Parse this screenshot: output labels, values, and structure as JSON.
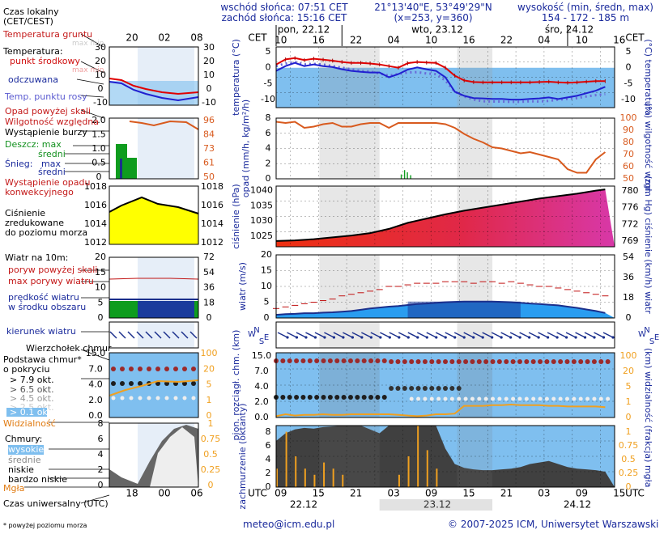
{
  "header": {
    "sunrise": "wschód słońca: 07:51 CET",
    "sunset": "zachód słońca: 15:16 CET",
    "coords": "21°13'40\"E, 53°49'29\"N",
    "grid": "(x=253, y=360)",
    "alt_label": "wysokość (min, średn, max)",
    "alt_values": "154 - 172 - 185 m"
  },
  "legend": {
    "local_time": "Czas lokalny",
    "local_time_sub": "(CET/CEST)",
    "soil_temp": "Temperatura gruntu",
    "soil_max_min": "max min",
    "temp_label": "Temperatura:",
    "temp_mid": "punkt środkowy",
    "temp_max_min": "max min",
    "felt": "odczuwana",
    "dew": "Temp. punktu rosy",
    "precip_above": "Opad powyżej skali",
    "humidity": "Wilgotność względna",
    "storm": "Wystąpienie burzy",
    "rain": "Deszcz: max",
    "rain_avg": "średni",
    "snow": "Śnieg:",
    "snow_max": "max",
    "snow_avg": "średni",
    "conv": "Wystąpienie opadu",
    "conv2": "konwekcyjnego",
    "pressure1": "Ciśnienie",
    "pressure2": "zredukowane",
    "pressure3": "do poziomu morza",
    "wind_title": "Wiatr na 10m:",
    "gust_above": "poryw powyżej skali",
    "gust_max": "max porywy wiatru",
    "wind_speed": "prędkość wiatru",
    "wind_area": "w środku obszaru",
    "wind_dir": "kierunek wiatru",
    "cloud_top": "Wierzchołek chmur",
    "cloud_base": "Podstawa chmur*",
    "cloud_cover": "o pokryciu",
    "okt1": "> 7.9 okt.",
    "okt2": "> 6.5 okt.",
    "okt3": "> 4.5 okt.",
    "okt4": "> 2.5 okt.",
    "okt5": "> 0.1 okt.",
    "visibility": "Widzialność",
    "clouds": "Chmury:",
    "cl_high": "wysokie",
    "cl_mid": "średnie",
    "cl_low": "niskie",
    "cl_vlow": "bardzo niskie",
    "fog": "Mgła",
    "utc": "Czas uniwersalny (UTC)",
    "footnote": "* powyżej poziomu morza"
  },
  "mini_axes": {
    "local_ticks": [
      "20",
      "02",
      "08"
    ],
    "utc_ticks": [
      "18",
      "00",
      "06"
    ],
    "temp_ticks": [
      "30",
      "20",
      "10",
      "0",
      "-10"
    ],
    "precip_ticks": [
      "2.0",
      "1.5",
      "1.0",
      "0.5",
      "0"
    ],
    "hum_ticks": [
      "96",
      "84",
      "73",
      "61",
      "50"
    ],
    "pres_ticks_l": [
      "1018",
      "1016",
      "1014",
      "1012"
    ],
    "pres_ticks_r": [
      "1018",
      "1016",
      "1014",
      "1012"
    ],
    "wind_ticks_l": [
      "20",
      "15",
      "10",
      "5",
      "0"
    ],
    "wind_ticks_r": [
      "72",
      "54",
      "36",
      "18",
      "0"
    ],
    "cb_ticks": [
      "15.0",
      "7.0",
      "4.0",
      "2.0",
      "0.0"
    ],
    "vis_ticks": [
      "100",
      "20",
      "5",
      "1",
      "0"
    ],
    "cl_ticks": [
      "8",
      "6",
      "4",
      "2",
      "0"
    ],
    "fog_ticks": [
      "1",
      "0.75",
      "0.5",
      "0.25",
      "0"
    ]
  },
  "main_axes": {
    "cet": "CET",
    "utc": "UTC",
    "days_top": [
      "pon, 22.12",
      "wto, 23.12",
      "śro, 24.12"
    ],
    "cet_hours": [
      "10",
      "16",
      "22",
      "04",
      "10",
      "16",
      "22",
      "04",
      "10",
      "16"
    ],
    "utc_hours": [
      "09",
      "15",
      "21",
      "03",
      "09",
      "15",
      "21",
      "03",
      "09",
      "15"
    ],
    "days_bottom": [
      "22.12",
      "23.12",
      "24.12"
    ],
    "temp_left": "temperatura (°C)",
    "temp_right": "(°C) temperatura",
    "temp_ticks": [
      "5",
      "0",
      "-5",
      "-10"
    ],
    "precip_left": "opad (mm/h, kg/m²/h)",
    "precip_right": "(%) wilgotność wzgl.",
    "precip_ticks": [
      "8",
      "6",
      "4",
      "2",
      "0"
    ],
    "hum_ticks": [
      "100",
      "90",
      "80",
      "70",
      "60",
      "50"
    ],
    "pres_left": "ciśnienie (hPa)",
    "pres_right": "(mm Hg) ciśnienie",
    "pres_ticks": [
      "1040",
      "1035",
      "1030",
      "1025"
    ],
    "pres_mm_ticks": [
      "780",
      "776",
      "772",
      "769"
    ],
    "wind_left": "wiatr (m/s)",
    "wind_right": "(km/h) wiatr",
    "wind_ticks": [
      "20",
      "15",
      "10",
      "5",
      "0"
    ],
    "wind_kmh": [
      "54",
      "36",
      "18",
      "0"
    ],
    "cb_left": "pion. rozciągł. chm. (km)",
    "cb_right": "(km) widzialność",
    "cb_ticks": [
      "15.0",
      "7.0",
      "4.0",
      "2.0",
      "0.0"
    ],
    "vis_ticks": [
      "100",
      "20",
      "5",
      "1",
      "0"
    ],
    "cl_left": "zachmurzenie (oktanty)",
    "cl_right": "(frakcja) mgła",
    "cl_ticks": [
      "8",
      "6",
      "4",
      "2",
      "0"
    ],
    "fog_ticks": [
      "1",
      "0.75",
      "0.5",
      "0.25",
      "0"
    ],
    "compass_n": "N",
    "compass_w": "W",
    "compass_s": "S",
    "compass_e": "E"
  },
  "footer": {
    "email": "meteo@icm.edu.pl",
    "copyright": "© 2007-2025 ICM, Uniwersytet Warszawski"
  },
  "colors": {
    "sky": "#7fbfef",
    "temp_red": "#e00000",
    "felt_blue": "#2020d0",
    "dew_blue": "#6a6ad8",
    "humidity": "#d85a1e",
    "pressure_yellow": "#ffff00",
    "pressure_red": "#ee3010",
    "pressure_pink": "#d838a8",
    "wind_dark": "#1b2f8c",
    "wind_green": "#0e9c1e",
    "visibility": "#f0a020",
    "cloud_dark": "#404040"
  },
  "chart_data": [
    {
      "type": "line",
      "title": "",
      "ylabel": "temperatura (°C)",
      "ylim": [
        -12.5,
        6.5
      ],
      "x": [
        0,
        2,
        4,
        6,
        8,
        10,
        12,
        14,
        16,
        18,
        20,
        22,
        24,
        26,
        28,
        30,
        32,
        34,
        36,
        38,
        40,
        42,
        44,
        46,
        48,
        50,
        52,
        54,
        56,
        58,
        60,
        62,
        64,
        66,
        68,
        70
      ],
      "series": [
        {
          "name": "punkt środkowy",
          "values": [
            1,
            2.6,
            3,
            2.4,
            2.8,
            2.5,
            2.2,
            1.8,
            1.5,
            1.5,
            1.3,
            1.0,
            0.5,
            0,
            1.4,
            1.8,
            1.6,
            1.5,
            0,
            -2.5,
            -4,
            -4.5,
            -4.6,
            -4.6,
            -4.6,
            -4.6,
            -4.6,
            -4.6,
            -4.5,
            -4.4,
            -4.6,
            -4.7,
            -4.6,
            -4.4,
            -4.2,
            -4.2
          ]
        },
        {
          "name": "odczuwana",
          "values": [
            -1,
            0.5,
            1.5,
            0.5,
            1.0,
            0.5,
            0.2,
            -0.5,
            -1.0,
            -1.3,
            -1.5,
            -1.5,
            -3,
            -2,
            -0.6,
            0.1,
            -0.5,
            -1.0,
            -3,
            -7.5,
            -8.8,
            -9.5,
            -9.6,
            -9.8,
            -9.8,
            -10,
            -10,
            -9.8,
            -9.6,
            -9.3,
            -9.8,
            -9.3,
            -8.8,
            -8.0,
            -7.2,
            -6.0
          ]
        },
        {
          "name": "Temp. punktu rosy",
          "values": [
            0.5,
            1.3,
            1.8,
            1.0,
            1.2,
            1.0,
            0.5,
            0.0,
            -0.5,
            -1,
            -1.2,
            -1.8,
            -2.5,
            -2,
            -1.5,
            -1.4,
            -1.8,
            -2,
            -4,
            -7.5,
            -9,
            -10,
            -10.5,
            -10.6,
            -10.6,
            -10.7,
            -10.7,
            -10.5,
            -10.6,
            -10.4,
            -10,
            -9.8,
            -9.5,
            -9.0,
            -8.6,
            -8.3
          ]
        }
      ]
    },
    {
      "type": "line",
      "title": "",
      "ylabel": "(%) wilgotność wzgl.",
      "ylim": [
        50,
        100
      ],
      "x": [
        0,
        2,
        4,
        6,
        8,
        10,
        12,
        14,
        16,
        18,
        20,
        22,
        24,
        26,
        28,
        30,
        32,
        34,
        36,
        38,
        40,
        42,
        44,
        46,
        48,
        50,
        52,
        54,
        56,
        58,
        60,
        62,
        64,
        66,
        68,
        70
      ],
      "series": [
        {
          "name": "Wilgotność względna",
          "values": [
            97,
            96,
            97,
            92,
            93,
            95,
            96,
            93,
            93,
            95,
            96,
            96,
            92,
            96,
            96,
            96,
            96,
            96,
            95,
            92,
            87,
            83,
            80,
            76,
            75,
            73,
            71,
            72,
            70,
            68,
            66,
            58,
            55,
            55,
            66,
            72
          ]
        },
        {
          "name": "Deszcz",
          "values": [
            0,
            0,
            0,
            0,
            0,
            0,
            0,
            0,
            0,
            0,
            0,
            0,
            0,
            0,
            0,
            0,
            0,
            0,
            0,
            0,
            0,
            0,
            0,
            0,
            0,
            0,
            0,
            0,
            0,
            0,
            0,
            0,
            0,
            0,
            0,
            0
          ]
        },
        {
          "name": "Śnieg",
          "values": [
            0,
            0,
            0,
            0,
            0,
            0,
            0,
            0,
            0,
            0,
            0,
            0,
            0,
            0,
            0,
            0,
            0,
            0,
            0,
            0,
            0,
            0,
            0,
            0,
            0,
            0,
            0,
            0,
            0,
            0,
            0,
            0,
            0,
            0,
            0,
            0
          ]
        }
      ]
    },
    {
      "type": "area",
      "title": "",
      "ylabel": "ciśnienie (hPa)",
      "ylim": [
        1021.5,
        1041.5
      ],
      "x": [
        0,
        4,
        8,
        12,
        16,
        20,
        24,
        28,
        32,
        36,
        40,
        44,
        48,
        52,
        56,
        60,
        64,
        68,
        70
      ],
      "series": [
        {
          "name": "Ciśnienie",
          "values": [
            1023.4,
            1023.6,
            1024.0,
            1024.6,
            1025.2,
            1026.0,
            1027.4,
            1029.4,
            1030.8,
            1032.2,
            1033.4,
            1034.4,
            1035.4,
            1036.4,
            1037.4,
            1038.2,
            1039.0,
            1040.0,
            1040.4
          ]
        }
      ]
    },
    {
      "type": "line",
      "title": "",
      "ylabel": "wiatr (m/s)",
      "ylim": [
        0,
        20
      ],
      "x": [
        0,
        2,
        4,
        6,
        8,
        10,
        12,
        14,
        16,
        18,
        20,
        22,
        24,
        26,
        28,
        30,
        32,
        34,
        36,
        38,
        40,
        42,
        44,
        46,
        48,
        50,
        52,
        54,
        56,
        58,
        60,
        62,
        64,
        66,
        68,
        70
      ],
      "series": [
        {
          "name": "max porywy wiatru",
          "values": [
            3,
            3.5,
            4,
            4.5,
            5,
            5.5,
            6,
            7,
            7.5,
            8,
            8.5,
            9,
            10,
            10,
            10.5,
            11,
            11,
            11,
            11.5,
            11.5,
            11.5,
            11,
            11.5,
            11.5,
            11,
            11.5,
            11,
            10.5,
            10,
            10,
            9.5,
            9,
            8.5,
            8,
            7.5,
            7
          ]
        },
        {
          "name": "prędkość wiatru",
          "values": [
            1,
            1.2,
            1.3,
            1.5,
            1.5,
            1.7,
            1.8,
            2.0,
            2.2,
            2.6,
            3.0,
            3.3,
            3.6,
            3.8,
            4.1,
            4.4,
            4.6,
            4.8,
            5.0,
            5.1,
            5.2,
            5.2,
            5.2,
            5.2,
            5.1,
            5.0,
            4.8,
            4.6,
            4.4,
            4.2,
            4.0,
            3.6,
            3.2,
            2.7,
            2.2,
            1.6
          ]
        }
      ]
    },
    {
      "type": "line",
      "title": "",
      "ylabel": "(km) widzialność",
      "ylim": [
        0,
        100
      ],
      "x": [
        0,
        2,
        4,
        6,
        8,
        10,
        12,
        14,
        16,
        18,
        20,
        22,
        24,
        26,
        28,
        30,
        32,
        34,
        36,
        38,
        40,
        42,
        44,
        46,
        48,
        50,
        52,
        54,
        56,
        58,
        60,
        62,
        64,
        66,
        68,
        70
      ],
      "series": [
        {
          "name": "Widzialność",
          "values": [
            2,
            5,
            3,
            4,
            4,
            5,
            4,
            4,
            5,
            5,
            5,
            5,
            5,
            4,
            3,
            2,
            3,
            5,
            5,
            6,
            18,
            18,
            18,
            19,
            19,
            20,
            19,
            19,
            19,
            18,
            18,
            17,
            17,
            17,
            17,
            16
          ]
        }
      ]
    },
    {
      "type": "area",
      "title": "",
      "ylabel": "zachmurzenie (oktanty)",
      "ylim": [
        0,
        8
      ],
      "x": [
        0,
        2,
        4,
        6,
        8,
        10,
        12,
        14,
        16,
        18,
        20,
        22,
        24,
        26,
        28,
        30,
        32,
        34,
        36,
        38,
        40,
        42,
        44,
        46,
        48,
        50,
        52,
        54,
        56,
        58,
        60,
        62,
        64,
        66,
        68,
        70
      ],
      "series": [
        {
          "name": "niskie",
          "values": [
            6,
            7,
            7.5,
            7.7,
            7.6,
            7.8,
            7.9,
            8,
            8,
            8,
            7.5,
            7,
            8,
            8,
            8,
            8,
            8,
            8,
            5,
            3,
            2.5,
            2.3,
            2.2,
            2.2,
            2.3,
            2.4,
            2.6,
            3,
            3.2,
            3.4,
            3,
            2.6,
            2.4,
            2.3,
            2.2,
            2.0
          ]
        },
        {
          "name": "Mgła",
          "values": [
            0.3,
            0.9,
            0.5,
            0.3,
            0.2,
            0.4,
            0.3,
            0.2,
            0,
            0,
            0,
            0,
            0,
            0.2,
            0.5,
            1,
            0.6,
            0.3,
            0,
            0,
            0,
            0,
            0,
            0,
            0,
            0,
            0,
            0,
            0,
            0,
            0,
            0,
            0,
            0,
            0,
            0
          ]
        }
      ]
    }
  ]
}
